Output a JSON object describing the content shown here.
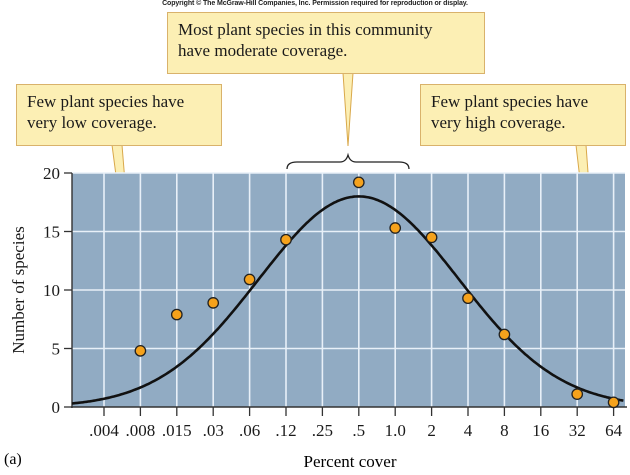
{
  "copyright": "Copyright © The McGraw-Hill Companies, Inc. Permission required for reproduction or display.",
  "panel_label": "(a)",
  "callouts": {
    "middle": "Most plant species in this community\nhave moderate coverage.",
    "left": "Few plant species have\nvery low coverage.",
    "right": "Few plant species have\nvery high coverage."
  },
  "colors": {
    "plot_bg": "#91abc3",
    "grid": "#e8f0f8",
    "point_fill": "#f5a21c",
    "callout_bg": "#fcefb4",
    "curve": "#111111"
  },
  "chart_data": {
    "type": "scatter",
    "title": "",
    "xlabel": "Percent cover",
    "ylabel": "Number of species",
    "x_scale": "log2-categorical",
    "categories": [
      ".004",
      ".008",
      ".015",
      ".03",
      ".06",
      ".12",
      ".25",
      ".5",
      "1.0",
      "2",
      "4",
      "8",
      "16",
      "32",
      "64"
    ],
    "ylim": [
      0,
      20
    ],
    "yticks": [
      0,
      5,
      10,
      15,
      20
    ],
    "grid": true,
    "points": [
      {
        "x": ".008",
        "y": 4.8
      },
      {
        "x": ".015",
        "y": 7.9
      },
      {
        "x": ".03",
        "y": 8.9
      },
      {
        "x": ".06",
        "y": 10.9
      },
      {
        "x": ".12",
        "y": 14.3
      },
      {
        "x": ".5",
        "y": 19.2
      },
      {
        "x": "1.0",
        "y": 15.3
      },
      {
        "x": "2",
        "y": 14.5
      },
      {
        "x": "4",
        "y": 9.3
      },
      {
        "x": "8",
        "y": 6.2
      },
      {
        "x": "32",
        "y": 1.1
      },
      {
        "x": "64",
        "y": 0.4
      }
    ],
    "fit_curve": {
      "type": "normal (lognormal on percent cover)",
      "peak_category": ".5",
      "peak_y": 18.0
    },
    "annotations": [
      "Few plant species have very low coverage.",
      "Most plant species in this community have moderate coverage.",
      "Few plant species have very high coverage."
    ]
  }
}
